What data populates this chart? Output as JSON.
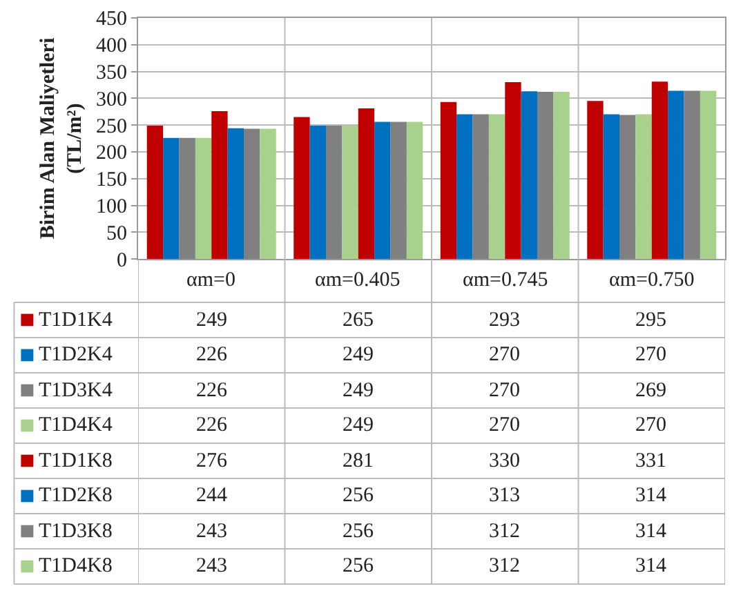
{
  "chart_data": {
    "type": "bar",
    "ylabel": "Birim Alan Maliyetleri (TL/m²)",
    "categories": [
      "αm=0",
      "αm=0.405",
      "αm=0.745",
      "αm=0.750"
    ],
    "series": [
      {
        "name": "T1D1K4",
        "color": "#c00000",
        "values": [
          249,
          265,
          293,
          295
        ]
      },
      {
        "name": "T1D2K4",
        "color": "#0070c0",
        "values": [
          226,
          249,
          270,
          270
        ]
      },
      {
        "name": "T1D3K4",
        "color": "#808080",
        "values": [
          226,
          249,
          270,
          269
        ]
      },
      {
        "name": "T1D4K4",
        "color": "#a9d18e",
        "values": [
          226,
          249,
          270,
          270
        ]
      },
      {
        "name": "T1D1K8",
        "color": "#c00000",
        "values": [
          276,
          281,
          330,
          331
        ]
      },
      {
        "name": "T1D2K8",
        "color": "#0070c0",
        "values": [
          244,
          256,
          313,
          314
        ]
      },
      {
        "name": "T1D3K8",
        "color": "#808080",
        "values": [
          243,
          256,
          312,
          314
        ]
      },
      {
        "name": "T1D4K8",
        "color": "#a9d18e",
        "values": [
          243,
          256,
          312,
          314
        ]
      }
    ],
    "ylim": [
      0,
      450
    ],
    "yticks": [
      0,
      50,
      100,
      150,
      200,
      250,
      300,
      350,
      400,
      450
    ],
    "grid": "y",
    "data_labels": true,
    "legend": "bottom"
  }
}
